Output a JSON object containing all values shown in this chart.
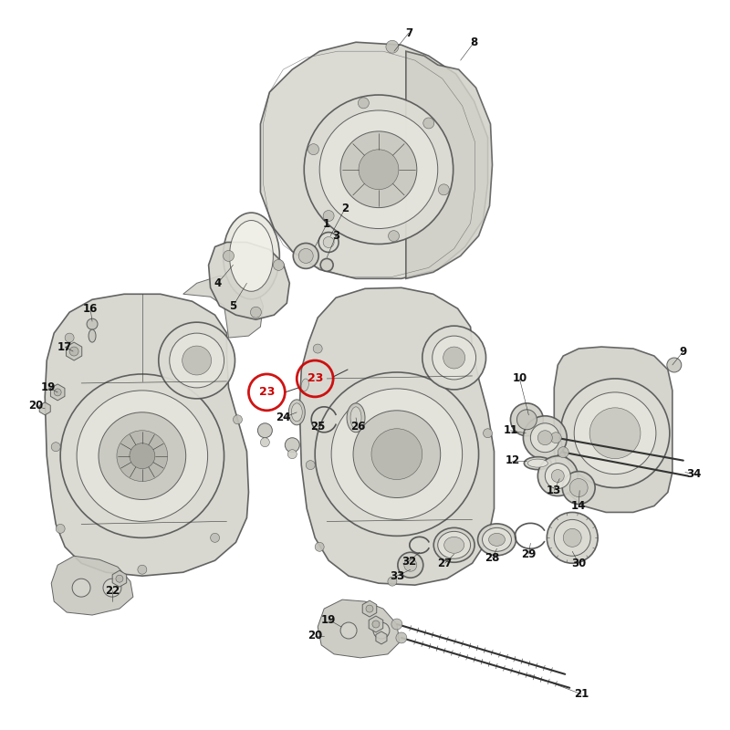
{
  "bg_color": "#ffffff",
  "case_fill": "#d4d4cc",
  "case_fill2": "#c8c8c0",
  "case_fill3": "#e0e0d8",
  "case_edge": "#555555",
  "line_color": "#333333",
  "label_color": "#111111",
  "highlight_color": "#cc0000",
  "fig_width": 8.0,
  "fig_height": 8.0,
  "dpi": 100,
  "lw_main": 1.2,
  "lw_detail": 0.7,
  "lw_thin": 0.4
}
